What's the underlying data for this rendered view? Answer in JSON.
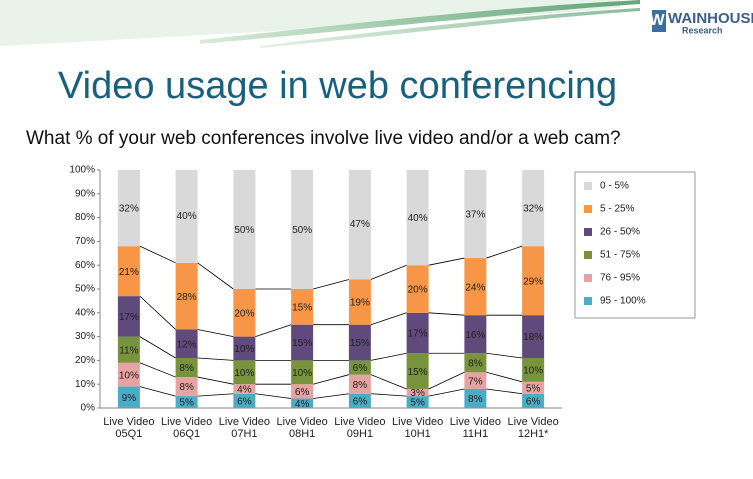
{
  "header": {
    "logo": "WAINHOUSE",
    "logo_sub": "Research"
  },
  "chart_data": {
    "type": "stacked_bar",
    "title": "Video usage in web conferencing",
    "subtitle": "What % of your web conferences involve live video and/or a web cam?",
    "categories": [
      "Live Video 05Q1",
      "Live Video 06Q1",
      "Live Video 07H1",
      "Live Video 08H1",
      "Live Video 09H1",
      "Live Video 10H1",
      "Live Video 11H1",
      "Live Video 12H1*"
    ],
    "series": [
      {
        "name": "95 - 100%",
        "color": "#4bacc6",
        "values": [
          9,
          5,
          6,
          4,
          6,
          5,
          8,
          6
        ],
        "value_labels": [
          "9%",
          "5%",
          "6%",
          "4%",
          "6%",
          "5%",
          "8%",
          "6%"
        ]
      },
      {
        "name": "76 - 95%",
        "color": "#e6a3a1",
        "values": [
          10,
          8,
          4,
          6,
          8,
          3,
          7,
          5
        ],
        "value_labels": [
          "10%",
          "8%",
          "4%",
          "6%",
          "8%",
          "3%",
          "7%",
          "5%"
        ]
      },
      {
        "name": "51 - 75%",
        "color": "#77933c",
        "values": [
          11,
          8,
          10,
          10,
          6,
          15,
          8,
          10
        ],
        "value_labels": [
          "11%",
          "8%",
          "10%",
          "10%",
          "6%",
          "15%",
          "8%",
          "10%"
        ]
      },
      {
        "name": "26 - 50%",
        "color": "#604a7b",
        "values": [
          17,
          12,
          10,
          15,
          15,
          17,
          16,
          18
        ],
        "value_labels": [
          "17%",
          "12%",
          "10%",
          "15%",
          "15%",
          "17%",
          "16%",
          "18%"
        ]
      },
      {
        "name": "5 - 25%",
        "color": "#f79646",
        "values": [
          21,
          28,
          20,
          15,
          19,
          20,
          24,
          29
        ],
        "value_labels": [
          "21%",
          "28%",
          "20%",
          "15%",
          "19%",
          "20%",
          "24%",
          "29%"
        ]
      },
      {
        "name": "0 - 5%",
        "color": "#d9d9d9",
        "values": [
          32,
          40,
          50,
          50,
          47,
          40,
          37,
          32
        ],
        "value_labels": [
          "32%",
          "40%",
          "50%",
          "50%",
          "47%",
          "40%",
          "37%",
          "32%"
        ]
      }
    ],
    "ylim": [
      0,
      100
    ],
    "yticks": [
      {
        "value": 0,
        "label": "0%"
      },
      {
        "value": 10,
        "label": "10%"
      },
      {
        "value": 20,
        "label": "20%"
      },
      {
        "value": 30,
        "label": "30%"
      },
      {
        "value": 40,
        "label": "40%"
      },
      {
        "value": 50,
        "label": "50%"
      },
      {
        "value": 60,
        "label": "60%"
      },
      {
        "value": 70,
        "label": "70%"
      },
      {
        "value": 80,
        "label": "80%"
      },
      {
        "value": 90,
        "label": "90%"
      },
      {
        "value": 100,
        "label": "100%"
      }
    ],
    "grid": false,
    "legend": "right"
  }
}
